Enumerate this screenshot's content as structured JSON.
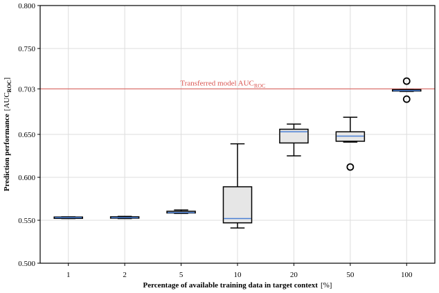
{
  "chart_data": {
    "type": "boxplot",
    "xlabel": "Percentage of available training data in target context",
    "xlabel_unit": "[%]",
    "ylabel": "Prediction performance",
    "ylabel_unit_open": "[AUC",
    "ylabel_unit_sub": "ROC",
    "ylabel_unit_close": "]",
    "ylim": [
      0.5,
      0.8
    ],
    "y_ticks": [
      {
        "value": 0.5,
        "label": "0.500"
      },
      {
        "value": 0.55,
        "label": "0.550"
      },
      {
        "value": 0.6,
        "label": "0.600"
      },
      {
        "value": 0.65,
        "label": "0.650"
      },
      {
        "value": 0.703,
        "label": "0.703"
      },
      {
        "value": 0.75,
        "label": "0.750"
      },
      {
        "value": 0.8,
        "label": "0.800"
      }
    ],
    "grid": true,
    "reference_line": {
      "value": 0.703,
      "label_main": "Transferred model AUC",
      "label_sub": "ROC",
      "color": "#d9534f"
    },
    "categories": [
      "1",
      "2",
      "5",
      "10",
      "20",
      "50",
      "100"
    ],
    "boxes": [
      {
        "category": "1",
        "whisker_low": 0.552,
        "q1": 0.5525,
        "median": 0.553,
        "q3": 0.5535,
        "whisker_high": 0.554,
        "outliers": []
      },
      {
        "category": "2",
        "whisker_low": 0.552,
        "q1": 0.5525,
        "median": 0.553,
        "q3": 0.554,
        "whisker_high": 0.5545,
        "outliers": []
      },
      {
        "category": "5",
        "whisker_low": 0.558,
        "q1": 0.5585,
        "median": 0.559,
        "q3": 0.5605,
        "whisker_high": 0.562,
        "outliers": []
      },
      {
        "category": "10",
        "whisker_low": 0.541,
        "q1": 0.547,
        "median": 0.552,
        "q3": 0.589,
        "whisker_high": 0.639,
        "outliers": []
      },
      {
        "category": "20",
        "whisker_low": 0.625,
        "q1": 0.64,
        "median": 0.653,
        "q3": 0.656,
        "whisker_high": 0.662,
        "outliers": []
      },
      {
        "category": "50",
        "whisker_low": 0.641,
        "q1": 0.642,
        "median": 0.648,
        "q3": 0.653,
        "whisker_high": 0.67,
        "outliers": [
          0.612
        ]
      },
      {
        "category": "100",
        "whisker_low": 0.7,
        "q1": 0.7005,
        "median": 0.701,
        "q3": 0.702,
        "whisker_high": 0.702,
        "outliers": [
          0.712,
          0.691
        ]
      }
    ],
    "colors": {
      "box_fill": "#e6e6e6",
      "box_edge": "#000000",
      "median": "#4a7fd4",
      "grid": "#dddddd",
      "reference": "#d9534f"
    }
  }
}
